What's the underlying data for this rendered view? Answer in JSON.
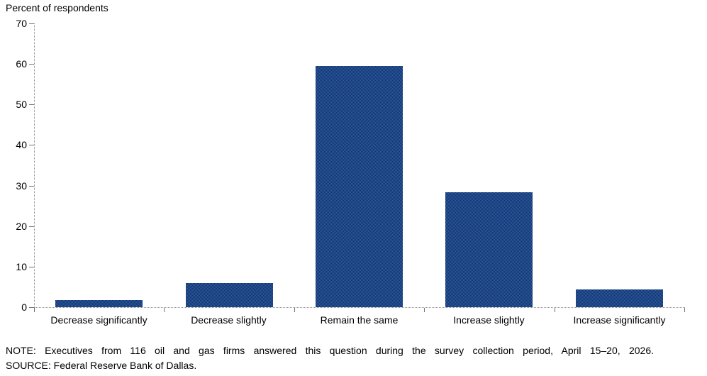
{
  "chart_data": {
    "type": "bar",
    "title": "Percent of respondents",
    "categories": [
      "Decrease significantly",
      "Decrease slightly",
      "Remain the same",
      "Increase slightly",
      "Increase significantly"
    ],
    "values": [
      1.7,
      6.0,
      59.5,
      28.4,
      4.3
    ],
    "xlabel": "",
    "ylabel": "Percent of respondents",
    "ylim": [
      0,
      70
    ],
    "yticks": [
      0,
      10,
      20,
      30,
      40,
      50,
      60,
      70
    ],
    "grid": false,
    "legend": false,
    "bar_color_light": "#2d5cb0",
    "bar_color_dark": "#12315c",
    "axis_color": "#8c8c8c",
    "tick_color": "#737373",
    "text_color": "#000000"
  },
  "notes": {
    "note": "NOTE: Executives from 116 oil and gas firms answered this question during the survey collection period, April 15–20, 2026.",
    "source": "SOURCE: Federal Reserve Bank of Dallas."
  }
}
